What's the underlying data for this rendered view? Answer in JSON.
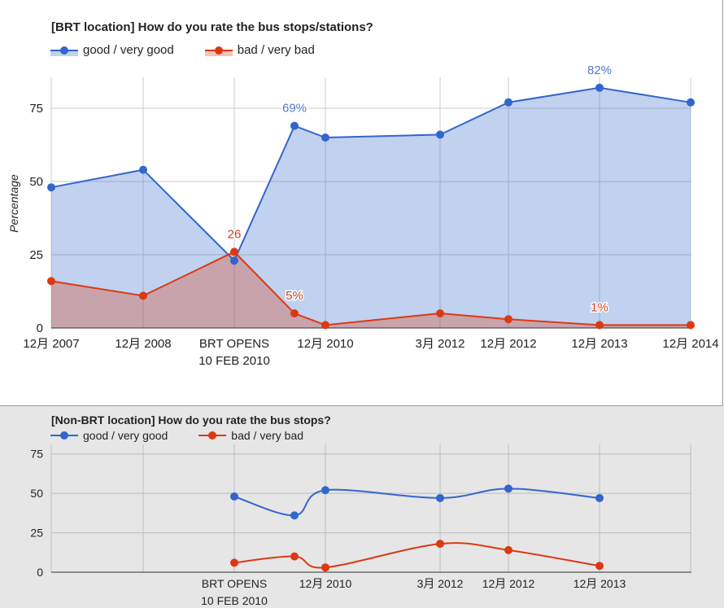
{
  "chart_data": [
    {
      "type": "area",
      "title": "[BRT location] How do you rate the bus stops/stations?",
      "ylabel": "Percentage",
      "ylim": [
        0,
        85
      ],
      "yticks": [
        "0",
        "25",
        "50",
        "75"
      ],
      "grid": true,
      "legend_position": "top-left",
      "categories": [
        "12月 2007",
        "12月 2008",
        "BRT OPENS|10 FEB 2010",
        "",
        "12月 2010",
        "3月 2012",
        "12月 2012",
        "12月 2013",
        "12月 2014"
      ],
      "series": [
        {
          "name": "good / very good",
          "color": "#3366cc",
          "values": [
            48,
            54,
            23,
            69,
            65,
            66,
            77,
            82,
            77
          ],
          "labels": [
            "",
            "",
            "",
            "69%",
            "",
            "",
            "",
            "82%",
            ""
          ]
        },
        {
          "name": "bad / very bad",
          "color": "#dc3912",
          "values": [
            16,
            11,
            26,
            5,
            1,
            5,
            3,
            1,
            1
          ],
          "labels": [
            "",
            "",
            "26",
            "5%",
            "",
            "",
            "",
            "1%",
            ""
          ]
        }
      ]
    },
    {
      "type": "line",
      "title": "[Non-BRT location] How do you rate the bus stops?",
      "ylim": [
        0,
        80
      ],
      "yticks": [
        "0",
        "25",
        "50",
        "75"
      ],
      "grid": true,
      "legend_position": "top-left",
      "categories": [
        "",
        "",
        "BRT OPENS|10 FEB 2010",
        "",
        "12月 2010",
        "3月 2012",
        "12月 2012",
        "12月 2013",
        ""
      ],
      "series": [
        {
          "name": "good / very good",
          "color": "#3366cc",
          "values": [
            null,
            null,
            48,
            36,
            52,
            47,
            53,
            47,
            null
          ]
        },
        {
          "name": "bad / very bad",
          "color": "#dc3912",
          "values": [
            null,
            null,
            6,
            10,
            3,
            18,
            14,
            4,
            null
          ]
        }
      ]
    }
  ]
}
